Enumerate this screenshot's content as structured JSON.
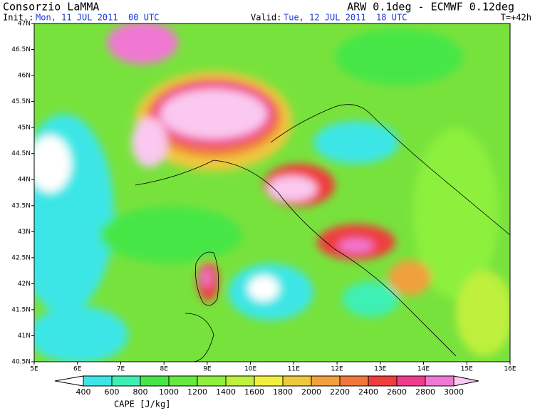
{
  "header": {
    "title": "Consorzio LaMMA",
    "init_label": "Init.:",
    "init_time": "Mon, 11 JUL 2011  00 UTC",
    "model": "ARW 0.1deg - ECMWF 0.12deg",
    "valid_label": "Valid:",
    "valid_time": "Tue, 12 JUL 2011  18 UTC",
    "lead": "T=+42h"
  },
  "map": {
    "lon_labels": [
      "5E",
      "6E",
      "7E",
      "8E",
      "9E",
      "10E",
      "11E",
      "12E",
      "13E",
      "14E",
      "15E",
      "16E"
    ],
    "lat_labels": [
      "47N",
      "46.5N",
      "46N",
      "45.5N",
      "45N",
      "44.5N",
      "44N",
      "43.5N",
      "43N",
      "42.5N",
      "42N",
      "41.5N",
      "41N",
      "40.5N"
    ]
  },
  "colorbar": {
    "label": "CAPE [J/kg]",
    "levels": [
      400,
      600,
      800,
      1000,
      1200,
      1400,
      1600,
      1800,
      2000,
      2200,
      2400,
      2600,
      2800,
      3000
    ],
    "colors": [
      "#ffffff",
      "#3ce6e6",
      "#3cf0b4",
      "#46e646",
      "#64ea3c",
      "#8cf03c",
      "#bef03c",
      "#f0f03c",
      "#f0c83c",
      "#f0a03c",
      "#f0783c",
      "#f03c3c",
      "#f03c8c",
      "#f078d2",
      "#fac8f0"
    ]
  }
}
